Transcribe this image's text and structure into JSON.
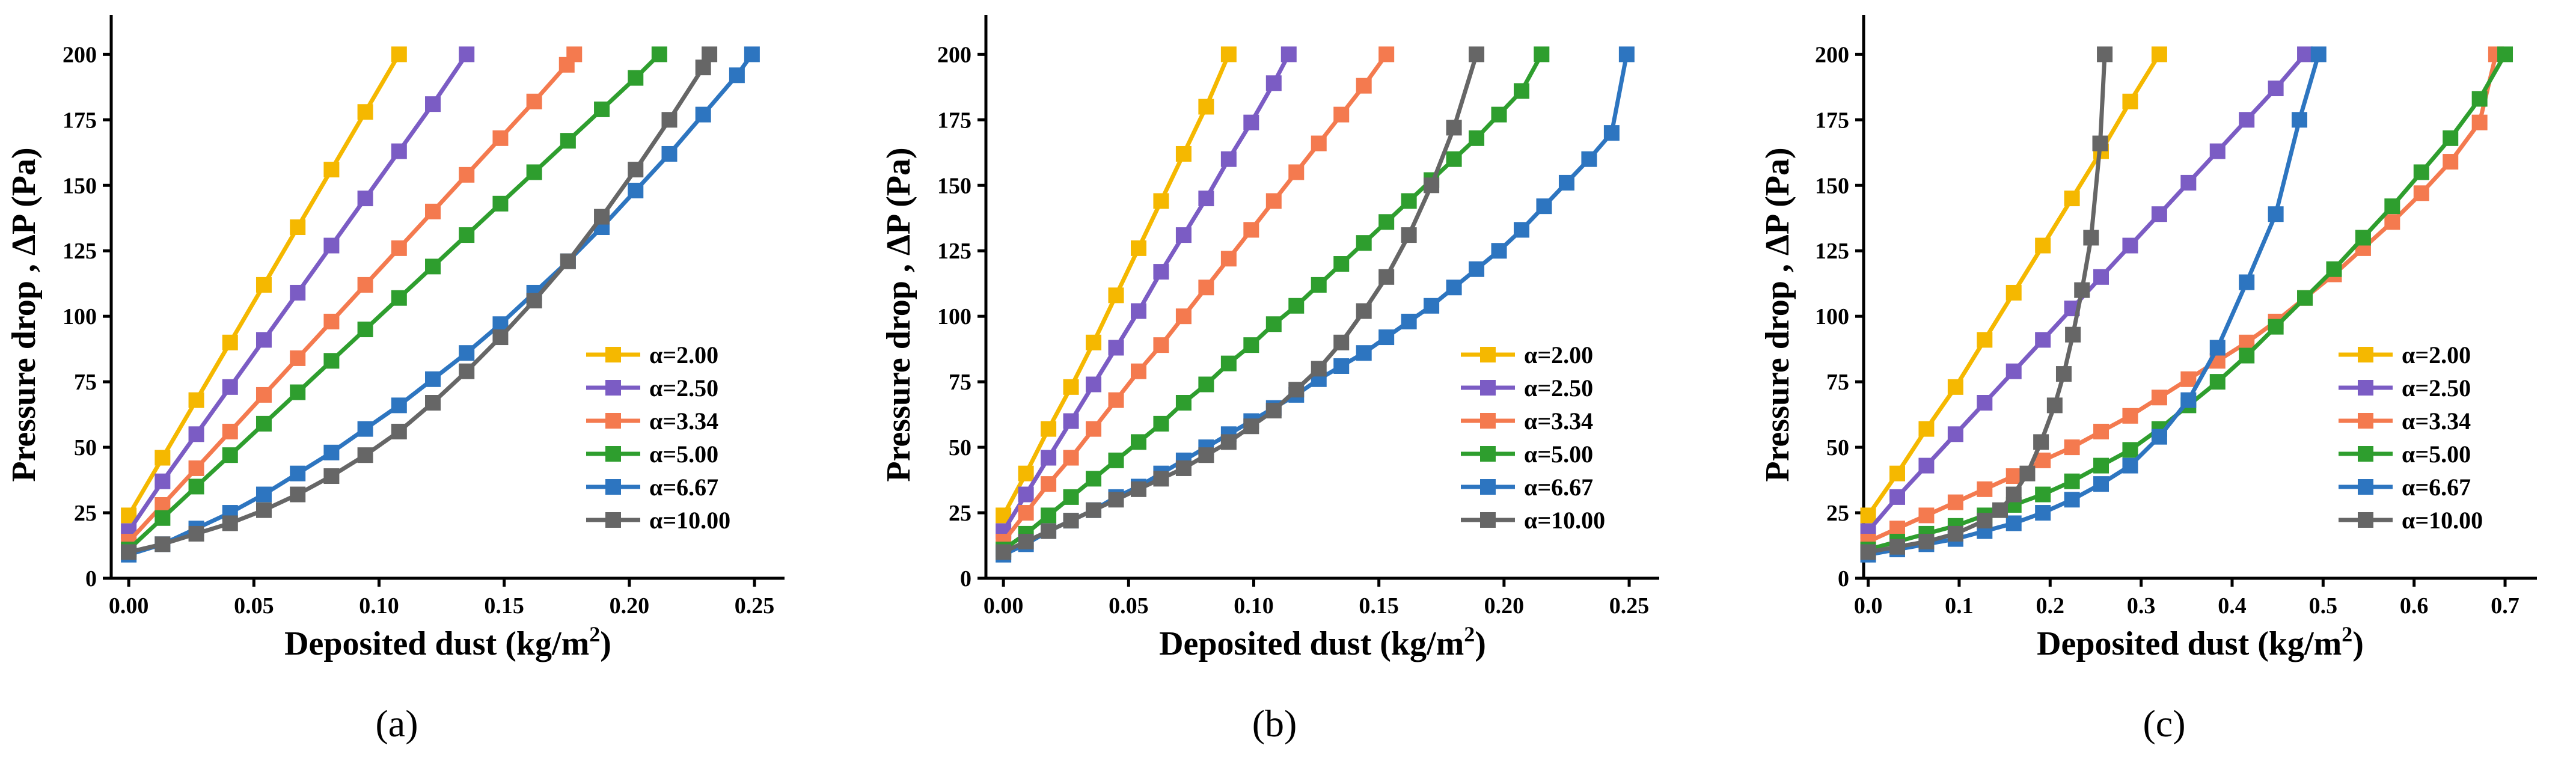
{
  "chart_data": [
    {
      "type": "line",
      "panel_label": "(a)",
      "xlabel": "Deposited dust (kg/m",
      "xlabel_sup": "2",
      "xlabel_end": ")",
      "ylabel": "Pressure drop , ΔP (Pa)",
      "xlim": [
        -0.007,
        0.262
      ],
      "ylim": [
        0,
        215
      ],
      "xticks": [
        0.0,
        0.05,
        0.1,
        0.15,
        0.2,
        0.25
      ],
      "xtick_labels": [
        "0.00",
        "0.05",
        "0.10",
        "0.15",
        "0.20",
        "0.25"
      ],
      "yticks": [
        0,
        25,
        50,
        75,
        100,
        125,
        150,
        175,
        200
      ],
      "ytick_labels": [
        "0",
        "25",
        "50",
        "75",
        "100",
        "125",
        "150",
        "175",
        "200"
      ],
      "legend_position": "bottom-right",
      "series": [
        {
          "name": "α=2.00",
          "color": "#F5B800",
          "x": [
            0,
            0.0135,
            0.027,
            0.0405,
            0.054,
            0.0675,
            0.081,
            0.0945,
            0.108
          ],
          "y": [
            24,
            46,
            68,
            90,
            112,
            134,
            156,
            178,
            200
          ]
        },
        {
          "name": "α=2.50",
          "color": "#7B5CC4",
          "x": [
            0,
            0.0135,
            0.027,
            0.0405,
            0.054,
            0.0675,
            0.081,
            0.0945,
            0.108,
            0.1215,
            0.135
          ],
          "y": [
            18,
            37,
            55,
            73,
            91,
            109,
            127,
            145,
            163,
            181,
            200
          ]
        },
        {
          "name": "α=3.34",
          "color": "#F47A4F",
          "x": [
            0,
            0.0135,
            0.027,
            0.0405,
            0.054,
            0.0675,
            0.081,
            0.0945,
            0.108,
            0.1215,
            0.135,
            0.1485,
            0.162,
            0.175,
            0.178
          ],
          "y": [
            14,
            28,
            42,
            56,
            70,
            84,
            98,
            112,
            126,
            140,
            154,
            168,
            182,
            196,
            200
          ]
        },
        {
          "name": "α=5.00",
          "color": "#2E9E2E",
          "x": [
            0,
            0.0135,
            0.027,
            0.0405,
            0.054,
            0.0675,
            0.081,
            0.0945,
            0.108,
            0.1215,
            0.135,
            0.1485,
            0.162,
            0.1755,
            0.189,
            0.2025,
            0.212
          ],
          "y": [
            11,
            23,
            35,
            47,
            59,
            71,
            83,
            95,
            107,
            119,
            131,
            143,
            155,
            167,
            179,
            191,
            200
          ]
        },
        {
          "name": "α=6.67",
          "color": "#2D75C0",
          "x": [
            0,
            0.0135,
            0.027,
            0.0405,
            0.054,
            0.0675,
            0.081,
            0.0945,
            0.108,
            0.1215,
            0.135,
            0.1485,
            0.162,
            0.1755,
            0.189,
            0.2025,
            0.216,
            0.2295,
            0.243,
            0.249
          ],
          "y": [
            9,
            13,
            19,
            25,
            32,
            40,
            48,
            57,
            66,
            76,
            86,
            97,
            109,
            121,
            134,
            148,
            162,
            177,
            192,
            200
          ]
        },
        {
          "name": "α=10.00",
          "color": "#666666",
          "x": [
            0,
            0.0135,
            0.027,
            0.0405,
            0.054,
            0.0675,
            0.081,
            0.0945,
            0.108,
            0.1215,
            0.135,
            0.1485,
            0.162,
            0.1755,
            0.189,
            0.2025,
            0.216,
            0.2295,
            0.232
          ],
          "y": [
            10,
            13,
            17,
            21,
            26,
            32,
            39,
            47,
            56,
            67,
            79,
            92,
            106,
            121,
            138,
            156,
            175,
            195,
            200
          ]
        }
      ]
    },
    {
      "type": "line",
      "panel_label": "(b)",
      "xlabel": "Deposited dust (kg/m",
      "xlabel_sup": "2",
      "xlabel_end": ")",
      "ylabel": "Pressure drop , ΔP (Pa)",
      "xlim": [
        -0.007,
        0.262
      ],
      "ylim": [
        0,
        215
      ],
      "xticks": [
        0.0,
        0.05,
        0.1,
        0.15,
        0.2,
        0.25
      ],
      "xtick_labels": [
        "0.00",
        "0.05",
        "0.10",
        "0.15",
        "0.20",
        "0.25"
      ],
      "yticks": [
        0,
        25,
        50,
        75,
        100,
        125,
        150,
        175,
        200
      ],
      "ytick_labels": [
        "0",
        "25",
        "50",
        "75",
        "100",
        "125",
        "150",
        "175",
        "200"
      ],
      "legend_position": "bottom-right",
      "series": [
        {
          "name": "α=2.00",
          "color": "#F5B800",
          "x": [
            0,
            0.009,
            0.018,
            0.027,
            0.036,
            0.045,
            0.054,
            0.063,
            0.072,
            0.081,
            0.09
          ],
          "y": [
            24,
            40,
            57,
            73,
            90,
            108,
            126,
            144,
            162,
            180,
            200
          ]
        },
        {
          "name": "α=2.50",
          "color": "#7B5CC4",
          "x": [
            0,
            0.009,
            0.018,
            0.027,
            0.036,
            0.045,
            0.054,
            0.063,
            0.072,
            0.081,
            0.09,
            0.099,
            0.108,
            0.114
          ],
          "y": [
            18,
            32,
            46,
            60,
            74,
            88,
            102,
            117,
            131,
            145,
            160,
            174,
            189,
            200
          ]
        },
        {
          "name": "α=3.34",
          "color": "#F47A4F",
          "x": [
            0,
            0.009,
            0.018,
            0.027,
            0.036,
            0.045,
            0.054,
            0.063,
            0.072,
            0.081,
            0.09,
            0.099,
            0.108,
            0.117,
            0.126,
            0.135,
            0.144,
            0.153
          ],
          "y": [
            14,
            25,
            36,
            46,
            57,
            68,
            79,
            89,
            100,
            111,
            122,
            133,
            144,
            155,
            166,
            177,
            188,
            200
          ]
        },
        {
          "name": "α=5.00",
          "color": "#2E9E2E",
          "x": [
            0,
            0.009,
            0.018,
            0.027,
            0.036,
            0.045,
            0.054,
            0.063,
            0.072,
            0.081,
            0.09,
            0.099,
            0.108,
            0.117,
            0.126,
            0.135,
            0.144,
            0.153,
            0.162,
            0.171,
            0.18,
            0.189,
            0.198,
            0.207,
            0.215
          ],
          "y": [
            11,
            17,
            24,
            31,
            38,
            45,
            52,
            59,
            67,
            74,
            82,
            89,
            97,
            104,
            112,
            120,
            128,
            136,
            144,
            152,
            160,
            168,
            177,
            186,
            200
          ]
        },
        {
          "name": "α=6.67",
          "color": "#2D75C0",
          "x": [
            0,
            0.009,
            0.018,
            0.027,
            0.036,
            0.045,
            0.054,
            0.063,
            0.072,
            0.081,
            0.09,
            0.099,
            0.108,
            0.117,
            0.126,
            0.135,
            0.144,
            0.153,
            0.162,
            0.171,
            0.18,
            0.189,
            0.198,
            0.207,
            0.216,
            0.225,
            0.234,
            0.243,
            0.249
          ],
          "y": [
            9,
            13,
            18,
            22,
            26,
            31,
            35,
            40,
            45,
            50,
            55,
            60,
            65,
            70,
            76,
            81,
            86,
            92,
            98,
            104,
            111,
            118,
            125,
            133,
            142,
            151,
            160,
            170,
            200
          ]
        },
        {
          "name": "α=10.00",
          "color": "#666666",
          "x": [
            0,
            0.009,
            0.018,
            0.027,
            0.036,
            0.045,
            0.054,
            0.063,
            0.072,
            0.081,
            0.09,
            0.099,
            0.108,
            0.117,
            0.126,
            0.135,
            0.144,
            0.153,
            0.162,
            0.171,
            0.18,
            0.189
          ],
          "y": [
            10,
            14,
            18,
            22,
            26,
            30,
            34,
            38,
            42,
            47,
            52,
            58,
            64,
            72,
            80,
            90,
            102,
            115,
            131,
            150,
            172,
            200
          ]
        }
      ]
    },
    {
      "type": "line",
      "panel_label": "(c)",
      "xlabel": "Deposited dust (kg/m",
      "xlabel_sup": "2",
      "xlabel_end": ")",
      "ylabel": "Pressure drop , ΔP (Pa)",
      "xlim": [
        -0.005,
        0.735
      ],
      "ylim": [
        0,
        215
      ],
      "xticks": [
        0.0,
        0.1,
        0.2,
        0.3,
        0.4,
        0.5,
        0.6,
        0.7
      ],
      "xtick_labels": [
        "0.0",
        "0.1",
        "0.2",
        "0.3",
        "0.4",
        "0.5",
        "0.6",
        "0.7"
      ],
      "yticks": [
        0,
        25,
        50,
        75,
        100,
        125,
        150,
        175,
        200
      ],
      "ytick_labels": [
        "0",
        "25",
        "50",
        "75",
        "100",
        "125",
        "150",
        "175",
        "200"
      ],
      "legend_position": "bottom-right",
      "series": [
        {
          "name": "α=2.00",
          "color": "#F5B800",
          "x": [
            0,
            0.032,
            0.064,
            0.096,
            0.128,
            0.16,
            0.192,
            0.224,
            0.256,
            0.288,
            0.32
          ],
          "y": [
            24,
            40,
            57,
            73,
            91,
            109,
            127,
            145,
            163,
            182,
            200
          ]
        },
        {
          "name": "α=2.50",
          "color": "#7B5CC4",
          "x": [
            0,
            0.032,
            0.064,
            0.096,
            0.128,
            0.16,
            0.192,
            0.224,
            0.256,
            0.288,
            0.32,
            0.352,
            0.384,
            0.416,
            0.448,
            0.48
          ],
          "y": [
            18,
            31,
            43,
            55,
            67,
            79,
            91,
            103,
            115,
            127,
            139,
            151,
            163,
            175,
            187,
            200
          ]
        },
        {
          "name": "α=3.34",
          "color": "#F47A4F",
          "x": [
            0,
            0.032,
            0.064,
            0.096,
            0.128,
            0.16,
            0.192,
            0.224,
            0.256,
            0.288,
            0.32,
            0.352,
            0.384,
            0.416,
            0.448,
            0.48,
            0.512,
            0.544,
            0.576,
            0.608,
            0.64,
            0.672,
            0.69
          ],
          "y": [
            14,
            19,
            24,
            29,
            34,
            39,
            45,
            50,
            56,
            62,
            69,
            76,
            83,
            90,
            98,
            107,
            116,
            126,
            136,
            147,
            159,
            174,
            200
          ]
        },
        {
          "name": "α=5.00",
          "color": "#2E9E2E",
          "x": [
            0,
            0.032,
            0.064,
            0.096,
            0.128,
            0.16,
            0.192,
            0.224,
            0.256,
            0.288,
            0.32,
            0.352,
            0.384,
            0.416,
            0.448,
            0.48,
            0.512,
            0.544,
            0.576,
            0.608,
            0.64,
            0.672,
            0.7
          ],
          "y": [
            11,
            14,
            17,
            20,
            24,
            28,
            32,
            37,
            43,
            49,
            57,
            66,
            75,
            85,
            96,
            107,
            118,
            130,
            142,
            155,
            168,
            183,
            200
          ]
        },
        {
          "name": "α=6.67",
          "color": "#2D75C0",
          "x": [
            0,
            0.032,
            0.064,
            0.096,
            0.128,
            0.16,
            0.192,
            0.224,
            0.256,
            0.288,
            0.32,
            0.352,
            0.384,
            0.416,
            0.448,
            0.474,
            0.495
          ],
          "y": [
            9,
            11,
            13,
            15,
            18,
            21,
            25,
            30,
            36,
            43,
            54,
            68,
            88,
            113,
            139,
            175,
            200
          ]
        },
        {
          "name": "α=10.00",
          "color": "#666666",
          "x": [
            0,
            0.032,
            0.064,
            0.096,
            0.128,
            0.145,
            0.16,
            0.175,
            0.19,
            0.205,
            0.215,
            0.225,
            0.235,
            0.245,
            0.255,
            0.26
          ],
          "y": [
            10,
            12,
            14,
            17,
            22,
            26,
            32,
            40,
            52,
            66,
            78,
            93,
            110,
            130,
            166,
            200
          ]
        }
      ]
    }
  ]
}
